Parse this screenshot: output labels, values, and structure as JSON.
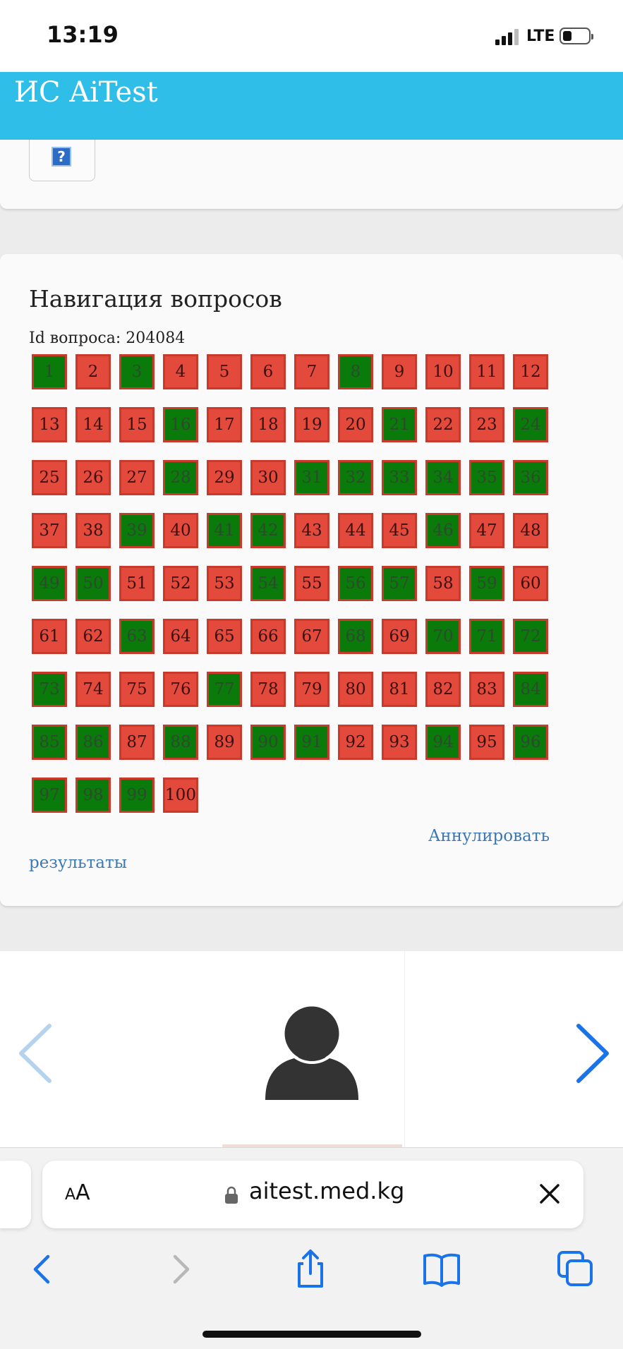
{
  "status_bar": {
    "time": "13:19",
    "network": "LTE"
  },
  "header": {
    "title": "ИС AiTest",
    "color": "#2ebee8"
  },
  "help": {
    "icon_glyph": "?"
  },
  "navigation": {
    "title": "Навигация вопросов",
    "id_label": "Id вопроса: 204084",
    "cancel_label_line1": "Аннулировать",
    "cancel_label_line2": "результаты",
    "status_colors": {
      "answered": "#0a7a0a",
      "unanswered": "#e34a3c"
    },
    "questions": [
      {
        "n": "1",
        "s": "green"
      },
      {
        "n": "2",
        "s": "red"
      },
      {
        "n": "3",
        "s": "green"
      },
      {
        "n": "4",
        "s": "red"
      },
      {
        "n": "5",
        "s": "red"
      },
      {
        "n": "6",
        "s": "red"
      },
      {
        "n": "7",
        "s": "red"
      },
      {
        "n": "8",
        "s": "green"
      },
      {
        "n": "9",
        "s": "red"
      },
      {
        "n": "10",
        "s": "red"
      },
      {
        "n": "11",
        "s": "red"
      },
      {
        "n": "12",
        "s": "red"
      },
      {
        "n": "13",
        "s": "red"
      },
      {
        "n": "14",
        "s": "red"
      },
      {
        "n": "15",
        "s": "red"
      },
      {
        "n": "16",
        "s": "green"
      },
      {
        "n": "17",
        "s": "red"
      },
      {
        "n": "18",
        "s": "red"
      },
      {
        "n": "19",
        "s": "red"
      },
      {
        "n": "20",
        "s": "red"
      },
      {
        "n": "21",
        "s": "green"
      },
      {
        "n": "22",
        "s": "red"
      },
      {
        "n": "23",
        "s": "red"
      },
      {
        "n": "24",
        "s": "green"
      },
      {
        "n": "25",
        "s": "red"
      },
      {
        "n": "26",
        "s": "red"
      },
      {
        "n": "27",
        "s": "red"
      },
      {
        "n": "28",
        "s": "green"
      },
      {
        "n": "29",
        "s": "red"
      },
      {
        "n": "30",
        "s": "red"
      },
      {
        "n": "31",
        "s": "green"
      },
      {
        "n": "32",
        "s": "green"
      },
      {
        "n": "33",
        "s": "green"
      },
      {
        "n": "34",
        "s": "green"
      },
      {
        "n": "35",
        "s": "green"
      },
      {
        "n": "36",
        "s": "green"
      },
      {
        "n": "37",
        "s": "red"
      },
      {
        "n": "38",
        "s": "red"
      },
      {
        "n": "39",
        "s": "green"
      },
      {
        "n": "40",
        "s": "red"
      },
      {
        "n": "41",
        "s": "green"
      },
      {
        "n": "42",
        "s": "green"
      },
      {
        "n": "43",
        "s": "red"
      },
      {
        "n": "44",
        "s": "red"
      },
      {
        "n": "45",
        "s": "red"
      },
      {
        "n": "46",
        "s": "green"
      },
      {
        "n": "47",
        "s": "red"
      },
      {
        "n": "48",
        "s": "red"
      },
      {
        "n": "49",
        "s": "green"
      },
      {
        "n": "50",
        "s": "green"
      },
      {
        "n": "51",
        "s": "red"
      },
      {
        "n": "52",
        "s": "red"
      },
      {
        "n": "53",
        "s": "red"
      },
      {
        "n": "54",
        "s": "green"
      },
      {
        "n": "55",
        "s": "red"
      },
      {
        "n": "56",
        "s": "green"
      },
      {
        "n": "57",
        "s": "green"
      },
      {
        "n": "58",
        "s": "red"
      },
      {
        "n": "59",
        "s": "green"
      },
      {
        "n": "60",
        "s": "red"
      },
      {
        "n": "61",
        "s": "red"
      },
      {
        "n": "62",
        "s": "red"
      },
      {
        "n": "63",
        "s": "green"
      },
      {
        "n": "64",
        "s": "red"
      },
      {
        "n": "65",
        "s": "red"
      },
      {
        "n": "66",
        "s": "red"
      },
      {
        "n": "67",
        "s": "red"
      },
      {
        "n": "68",
        "s": "green"
      },
      {
        "n": "69",
        "s": "red"
      },
      {
        "n": "70",
        "s": "green"
      },
      {
        "n": "71",
        "s": "green"
      },
      {
        "n": "72",
        "s": "green"
      },
      {
        "n": "73",
        "s": "green"
      },
      {
        "n": "74",
        "s": "red"
      },
      {
        "n": "75",
        "s": "red"
      },
      {
        "n": "76",
        "s": "red"
      },
      {
        "n": "77",
        "s": "green"
      },
      {
        "n": "78",
        "s": "red"
      },
      {
        "n": "79",
        "s": "red"
      },
      {
        "n": "80",
        "s": "red"
      },
      {
        "n": "81",
        "s": "red"
      },
      {
        "n": "82",
        "s": "red"
      },
      {
        "n": "83",
        "s": "red"
      },
      {
        "n": "84",
        "s": "green"
      },
      {
        "n": "85",
        "s": "green"
      },
      {
        "n": "86",
        "s": "green"
      },
      {
        "n": "87",
        "s": "red"
      },
      {
        "n": "88",
        "s": "green"
      },
      {
        "n": "89",
        "s": "red"
      },
      {
        "n": "90",
        "s": "green"
      },
      {
        "n": "91",
        "s": "green"
      },
      {
        "n": "92",
        "s": "red"
      },
      {
        "n": "93",
        "s": "red"
      },
      {
        "n": "94",
        "s": "green"
      },
      {
        "n": "95",
        "s": "red"
      },
      {
        "n": "96",
        "s": "green"
      },
      {
        "n": "97",
        "s": "green"
      },
      {
        "n": "98",
        "s": "green"
      },
      {
        "n": "99",
        "s": "green"
      },
      {
        "n": "100",
        "s": "red"
      }
    ]
  },
  "carousel": {
    "prev_icon": "chevron-left-icon",
    "next_icon": "chevron-right-icon",
    "avatar_icon": "user-silhouette-icon"
  },
  "browser": {
    "text_size_label_small": "A",
    "text_size_label_large": "A",
    "url": "aitest.med.kg",
    "toolbar_icons": [
      "back-icon",
      "forward-icon",
      "share-icon",
      "bookmarks-icon",
      "tabs-icon"
    ]
  }
}
